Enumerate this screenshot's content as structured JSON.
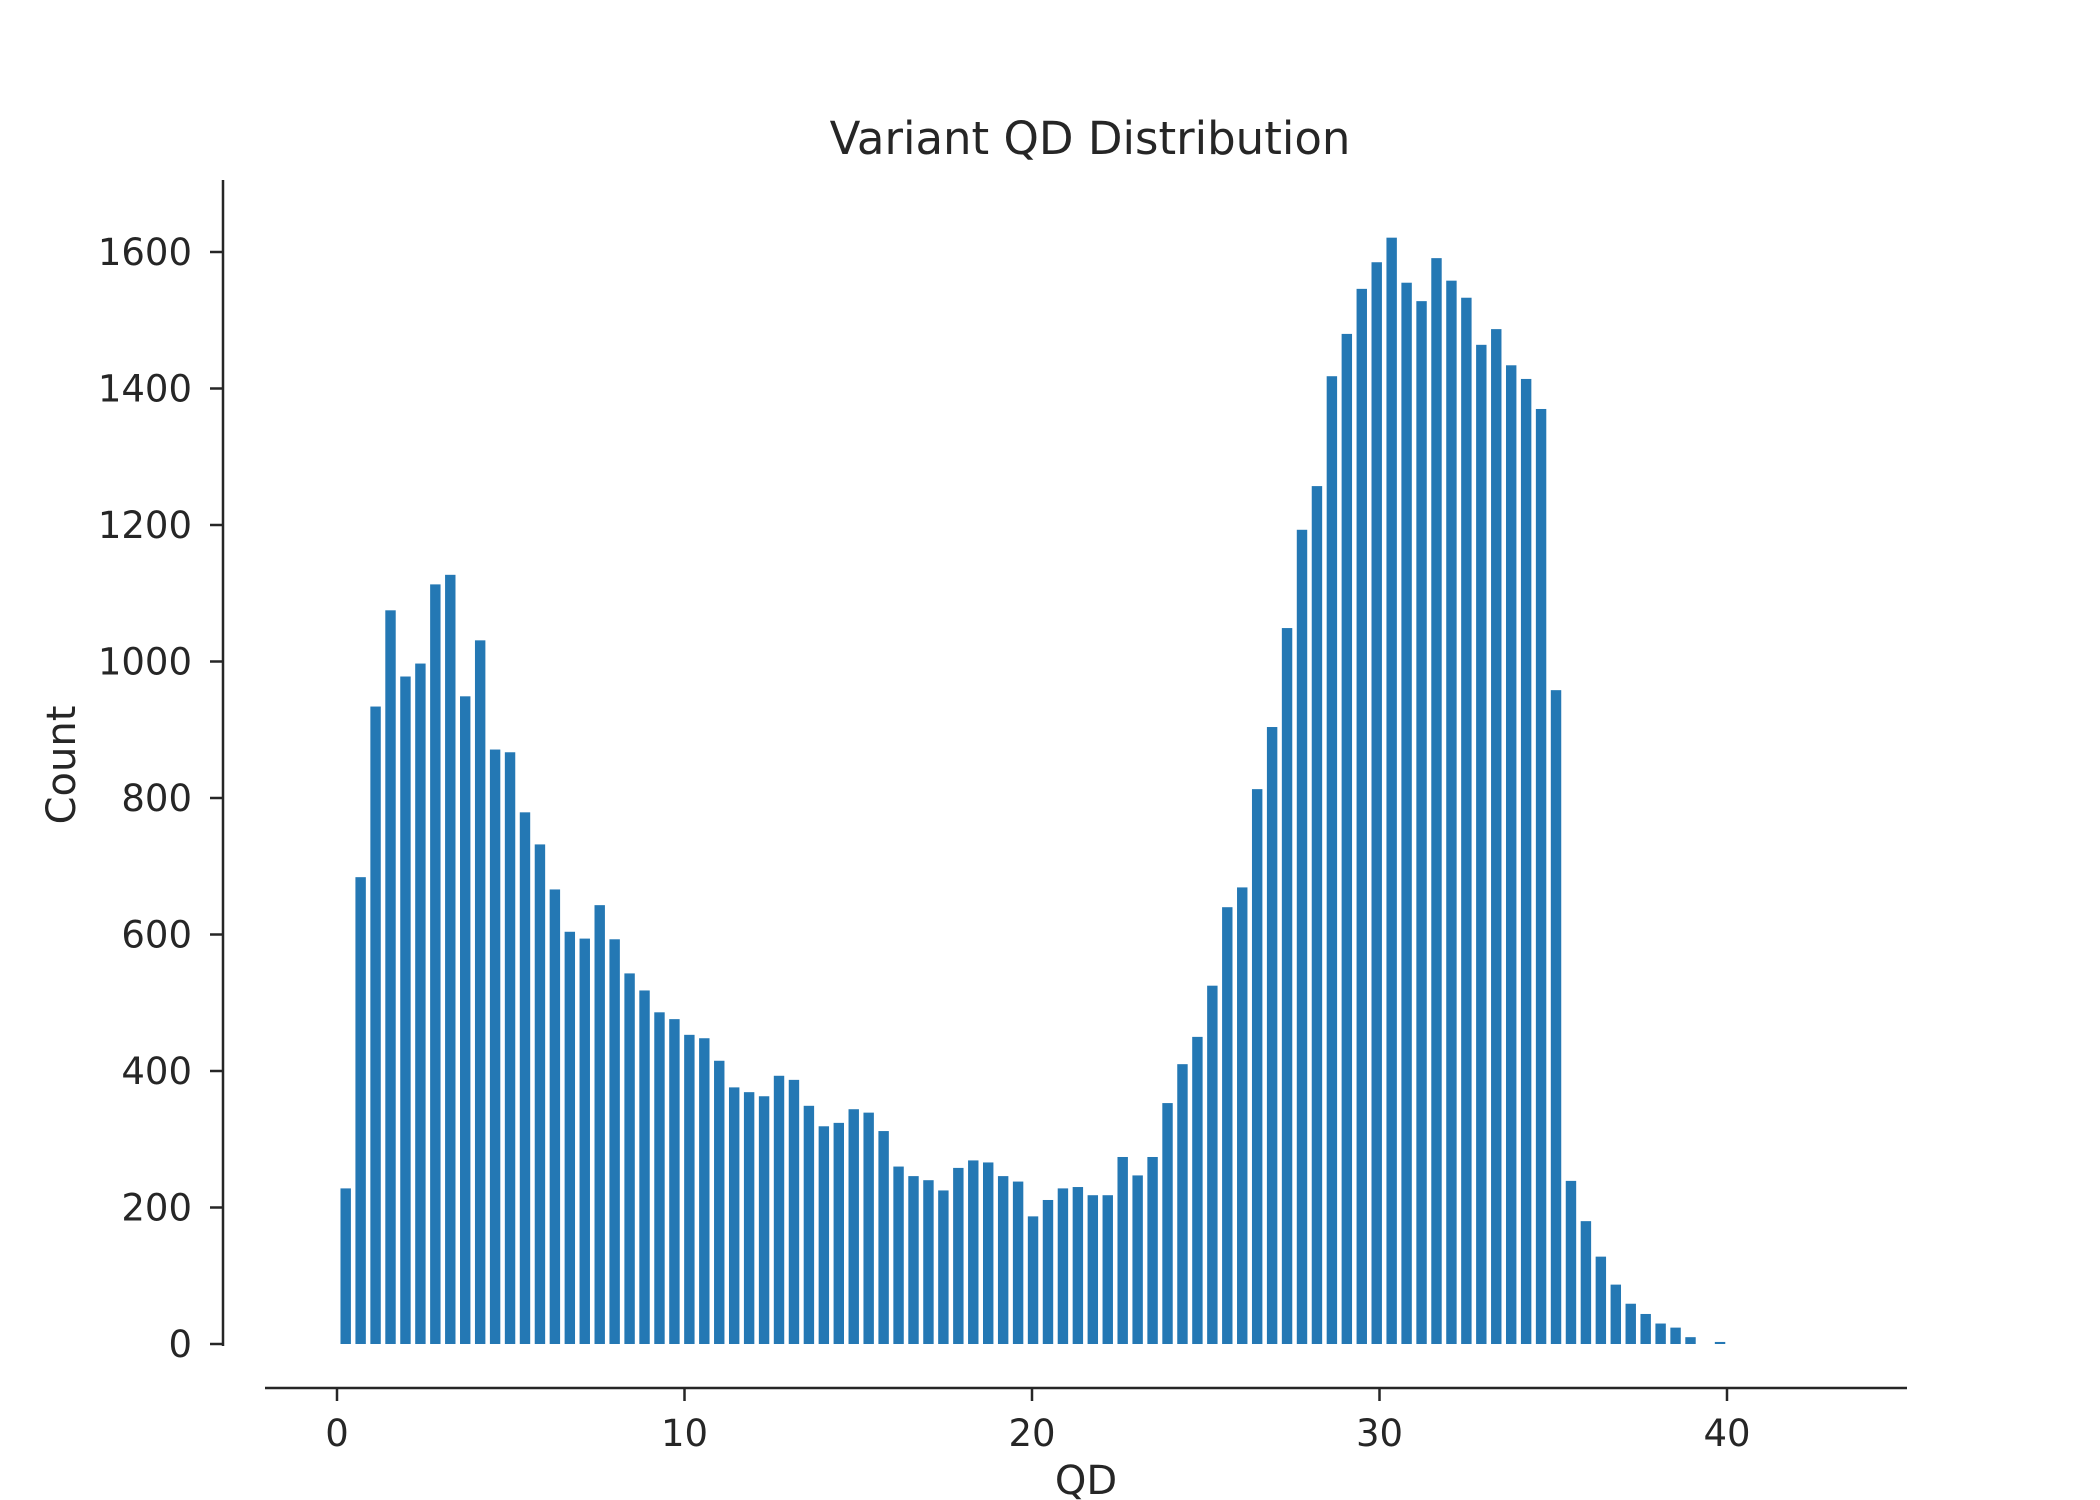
{
  "chart_data": {
    "type": "bar",
    "title": "Variant QD Distribution",
    "xlabel": "QD",
    "ylabel": "Count",
    "xlim": [
      -2.1,
      44.8
    ],
    "ylim": [
      0,
      1710
    ],
    "xticks": [
      0,
      10,
      20,
      30,
      40
    ],
    "yticks": [
      0,
      200,
      400,
      600,
      800,
      1000,
      1200,
      1400,
      1600
    ],
    "grid": false,
    "bar_color": "#2478b4",
    "bar_width": 0.3,
    "x": [
      0.25,
      0.68,
      1.11,
      1.54,
      1.97,
      2.4,
      2.83,
      3.26,
      3.69,
      4.12,
      4.55,
      4.98,
      5.41,
      5.84,
      6.27,
      6.7,
      7.13,
      7.56,
      7.99,
      8.42,
      8.85,
      9.28,
      9.71,
      10.14,
      10.57,
      11.0,
      11.43,
      11.86,
      12.29,
      12.72,
      13.15,
      13.58,
      14.01,
      14.44,
      14.87,
      15.3,
      15.73,
      16.16,
      16.59,
      17.02,
      17.45,
      17.88,
      18.31,
      18.74,
      19.17,
      19.6,
      20.03,
      20.46,
      20.89,
      21.32,
      21.75,
      22.18,
      22.61,
      23.04,
      23.47,
      23.9,
      24.33,
      24.76,
      25.19,
      25.62,
      26.05,
      26.48,
      26.91,
      27.34,
      27.77,
      28.2,
      28.63,
      29.06,
      29.49,
      29.92,
      30.35,
      30.78,
      31.21,
      31.64,
      32.07,
      32.5,
      32.93,
      33.36,
      33.79,
      34.22,
      34.65,
      35.08,
      35.51,
      35.94,
      36.37,
      36.8,
      37.23,
      37.66,
      38.09,
      38.52,
      38.95,
      39.8
    ],
    "values": [
      228,
      684,
      934,
      1075,
      978,
      997,
      1113,
      1127,
      949,
      1031,
      871,
      867,
      779,
      732,
      666,
      604,
      594,
      643,
      593,
      543,
      518,
      486,
      476,
      453,
      448,
      415,
      376,
      369,
      363,
      393,
      387,
      349,
      319,
      324,
      344,
      339,
      312,
      260,
      246,
      240,
      225,
      258,
      269,
      266,
      246,
      238,
      187,
      211,
      228,
      230,
      218,
      218,
      274,
      247,
      274,
      353,
      410,
      450,
      525,
      640,
      669,
      813,
      904,
      1049,
      1193,
      1257,
      1418,
      1480,
      1546,
      1585,
      1621,
      1555,
      1528,
      1591,
      1558,
      1533,
      1464,
      1487,
      1434,
      1414,
      1370,
      958,
      239,
      180,
      128,
      87,
      59,
      44,
      30,
      24,
      10,
      3
    ]
  }
}
